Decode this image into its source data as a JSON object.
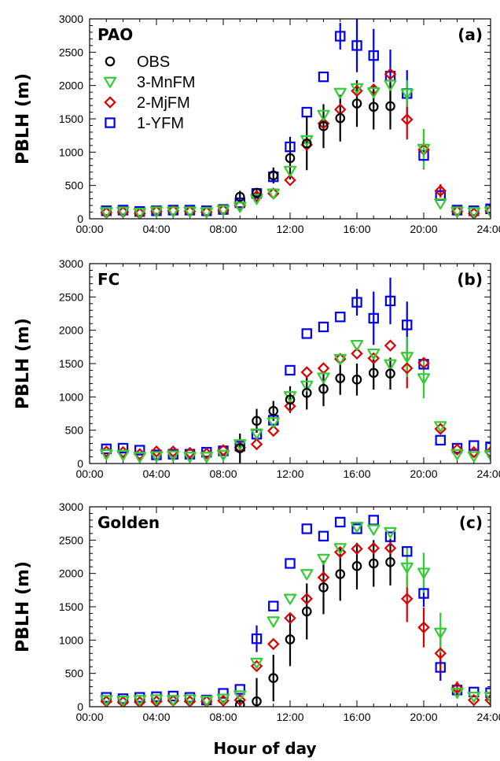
{
  "figure": {
    "xlabel": "Hour of day"
  },
  "legend": [
    {
      "label": "OBS",
      "marker": "circle",
      "color": "#000000"
    },
    {
      "label": "3-MnFM",
      "marker": "triangle-down",
      "color": "#33cc33"
    },
    {
      "label": "2-MjFM",
      "marker": "diamond",
      "color": "#dd0000"
    },
    {
      "label": "1-YFM",
      "marker": "square",
      "color": "#0000ee"
    }
  ],
  "chart_data": [
    {
      "type": "scatter",
      "site": "PAO",
      "panel_label": "(a)",
      "ylabel": "PBLH (m)",
      "xlabel": "",
      "xlim": [
        0,
        24
      ],
      "ylim": [
        0,
        3000
      ],
      "xticks": [
        "00:00",
        "04:00",
        "08:00",
        "12:00",
        "16:00",
        "20:00",
        "24:00"
      ],
      "yticks": [
        "0",
        "500",
        "1000",
        "1500",
        "2000",
        "2500",
        "3000"
      ],
      "x": [
        1,
        2,
        3,
        4,
        5,
        6,
        7,
        8,
        9,
        10,
        11,
        12,
        13,
        14,
        15,
        16,
        17,
        18,
        19,
        20,
        21,
        22,
        23,
        24
      ],
      "series": [
        {
          "name": "OBS",
          "color": "#000000",
          "marker": "circle",
          "values": [
            null,
            null,
            null,
            null,
            null,
            null,
            null,
            null,
            330,
            390,
            650,
            910,
            1130,
            1390,
            1510,
            1730,
            1680,
            1690,
            null,
            null,
            null,
            null,
            null,
            null
          ],
          "err": [
            0,
            0,
            0,
            0,
            0,
            0,
            0,
            0,
            90,
            60,
            120,
            320,
            400,
            330,
            350,
            350,
            340,
            350,
            0,
            0,
            0,
            0,
            0,
            0
          ]
        },
        {
          "name": "3-MnFM",
          "color": "#33cc33",
          "marker": "triangle-down",
          "values": [
            100,
            110,
            90,
            110,
            110,
            110,
            100,
            130,
            180,
            300,
            380,
            720,
            1180,
            1560,
            1890,
            1960,
            1900,
            2010,
            1880,
            1050,
            230,
            110,
            100,
            110
          ],
          "err": [
            0,
            0,
            0,
            0,
            0,
            0,
            0,
            0,
            0,
            0,
            0,
            0,
            0,
            0,
            0,
            0,
            0,
            0,
            200,
            300,
            0,
            0,
            0,
            0
          ]
        },
        {
          "name": "2-MjFM",
          "color": "#dd0000",
          "marker": "diamond",
          "values": [
            90,
            100,
            80,
            110,
            120,
            110,
            100,
            130,
            200,
            340,
            380,
            580,
            1110,
            1430,
            1640,
            1920,
            1940,
            2170,
            1490,
            1040,
            420,
            110,
            80,
            120
          ],
          "err": [
            0,
            0,
            0,
            0,
            0,
            0,
            0,
            0,
            0,
            0,
            0,
            0,
            0,
            0,
            0,
            0,
            0,
            0,
            300,
            300,
            100,
            0,
            0,
            0
          ]
        },
        {
          "name": "1-YFM",
          "color": "#0000ee",
          "marker": "square",
          "values": [
            120,
            130,
            110,
            120,
            130,
            130,
            120,
            140,
            240,
            380,
            630,
            1080,
            1600,
            2130,
            2740,
            2600,
            2450,
            2140,
            1880,
            950,
            350,
            130,
            120,
            150
          ],
          "err": [
            0,
            0,
            0,
            0,
            0,
            0,
            0,
            0,
            0,
            0,
            0,
            0,
            0,
            0,
            200,
            400,
            400,
            400,
            350,
            0,
            0,
            0,
            0,
            0
          ]
        }
      ]
    },
    {
      "type": "scatter",
      "site": "FC",
      "panel_label": "(b)",
      "ylabel": "PBLH (m)",
      "xlabel": "",
      "xlim": [
        0,
        24
      ],
      "ylim": [
        0,
        3000
      ],
      "xticks": [
        "00:00",
        "04:00",
        "08:00",
        "12:00",
        "16:00",
        "20:00",
        "24:00"
      ],
      "yticks": [
        "0",
        "500",
        "1000",
        "1500",
        "2000",
        "2500",
        "3000"
      ],
      "x": [
        1,
        2,
        3,
        4,
        5,
        6,
        7,
        8,
        9,
        10,
        11,
        12,
        13,
        14,
        15,
        16,
        17,
        18,
        19,
        20,
        21,
        22,
        23,
        24
      ],
      "series": [
        {
          "name": "OBS",
          "color": "#000000",
          "marker": "circle",
          "values": [
            null,
            null,
            null,
            null,
            null,
            null,
            null,
            null,
            230,
            640,
            790,
            960,
            1060,
            1120,
            1280,
            1260,
            1360,
            1350,
            null,
            null,
            null,
            null,
            null,
            null
          ],
          "err": [
            0,
            0,
            0,
            0,
            0,
            0,
            0,
            0,
            220,
            180,
            150,
            200,
            250,
            260,
            250,
            240,
            250,
            240,
            0,
            0,
            0,
            0,
            0,
            0
          ]
        },
        {
          "name": "3-MnFM",
          "color": "#33cc33",
          "marker": "triangle-down",
          "values": [
            140,
            130,
            100,
            110,
            120,
            100,
            100,
            130,
            290,
            450,
            620,
            1010,
            1170,
            1290,
            1570,
            1780,
            1650,
            1490,
            1600,
            1280,
            560,
            140,
            110,
            130
          ],
          "err": [
            0,
            0,
            0,
            0,
            0,
            0,
            0,
            0,
            0,
            0,
            0,
            0,
            0,
            0,
            0,
            0,
            0,
            0,
            300,
            300,
            0,
            0,
            0,
            0
          ]
        },
        {
          "name": "2-MjFM",
          "color": "#dd0000",
          "marker": "diamond",
          "values": [
            180,
            170,
            140,
            180,
            180,
            160,
            150,
            200,
            240,
            290,
            490,
            860,
            1370,
            1430,
            1570,
            1650,
            1580,
            1770,
            1430,
            1510,
            520,
            210,
            170,
            170
          ],
          "err": [
            0,
            0,
            0,
            0,
            0,
            0,
            0,
            0,
            0,
            0,
            0,
            0,
            0,
            0,
            0,
            0,
            0,
            0,
            300,
            0,
            0,
            0,
            0,
            0
          ]
        },
        {
          "name": "1-YFM",
          "color": "#0000ee",
          "marker": "square",
          "values": [
            220,
            230,
            200,
            130,
            140,
            140,
            170,
            190,
            260,
            440,
            650,
            1400,
            1950,
            2050,
            2200,
            2420,
            2180,
            2440,
            2080,
            1490,
            350,
            230,
            270,
            250
          ],
          "err": [
            0,
            0,
            0,
            0,
            0,
            0,
            0,
            0,
            0,
            0,
            0,
            0,
            0,
            0,
            0,
            200,
            400,
            350,
            350,
            0,
            0,
            0,
            0,
            0
          ]
        }
      ]
    },
    {
      "type": "scatter",
      "site": "Golden",
      "panel_label": "(c)",
      "ylabel": "PBLH (m)",
      "xlabel": "Hour of day",
      "xlim": [
        0,
        24
      ],
      "ylim": [
        0,
        3000
      ],
      "xticks": [
        "00:00",
        "04:00",
        "08:00",
        "12:00",
        "16:00",
        "20:00",
        "24:00"
      ],
      "yticks": [
        "0",
        "500",
        "1000",
        "1500",
        "2000",
        "2500",
        "3000"
      ],
      "x": [
        1,
        2,
        3,
        4,
        5,
        6,
        7,
        8,
        9,
        10,
        11,
        12,
        13,
        14,
        15,
        16,
        17,
        18,
        19,
        20,
        21,
        22,
        23,
        24
      ],
      "series": [
        {
          "name": "OBS",
          "color": "#000000",
          "marker": "circle",
          "values": [
            null,
            null,
            null,
            null,
            null,
            null,
            null,
            null,
            30,
            80,
            430,
            1010,
            1430,
            1790,
            1990,
            2110,
            2150,
            2170,
            null,
            null,
            null,
            null,
            null,
            null
          ],
          "err": [
            0,
            0,
            0,
            0,
            0,
            0,
            0,
            0,
            50,
            350,
            350,
            400,
            420,
            400,
            400,
            350,
            350,
            350,
            0,
            0,
            0,
            0,
            0,
            0
          ]
        },
        {
          "name": "3-MnFM",
          "color": "#33cc33",
          "marker": "triangle-down",
          "values": [
            100,
            90,
            100,
            110,
            100,
            110,
            90,
            120,
            170,
            660,
            1280,
            1620,
            1990,
            2220,
            2380,
            2700,
            2660,
            2620,
            2090,
            2010,
            1110,
            210,
            150,
            150
          ],
          "err": [
            0,
            0,
            0,
            0,
            0,
            0,
            0,
            0,
            0,
            0,
            0,
            0,
            0,
            0,
            0,
            0,
            0,
            0,
            300,
            300,
            300,
            0,
            0,
            0
          ]
        },
        {
          "name": "2-MjFM",
          "color": "#dd0000",
          "marker": "diamond",
          "values": [
            80,
            70,
            70,
            80,
            90,
            80,
            80,
            90,
            100,
            610,
            940,
            1330,
            1620,
            1940,
            2320,
            2370,
            2380,
            2380,
            1620,
            1190,
            800,
            280,
            100,
            100
          ],
          "err": [
            0,
            0,
            0,
            0,
            0,
            0,
            0,
            0,
            0,
            0,
            0,
            0,
            0,
            0,
            0,
            0,
            0,
            0,
            350,
            300,
            300,
            100,
            0,
            0
          ]
        },
        {
          "name": "1-YFM",
          "color": "#0000ee",
          "marker": "square",
          "values": [
            140,
            120,
            140,
            150,
            160,
            140,
            100,
            200,
            260,
            1020,
            1510,
            2150,
            2670,
            2560,
            2770,
            2670,
            2800,
            2550,
            2330,
            1700,
            590,
            250,
            220,
            210
          ],
          "err": [
            0,
            0,
            0,
            0,
            0,
            0,
            0,
            0,
            0,
            200,
            0,
            0,
            0,
            0,
            0,
            0,
            0,
            0,
            0,
            200,
            200,
            0,
            0,
            0
          ]
        }
      ]
    }
  ]
}
